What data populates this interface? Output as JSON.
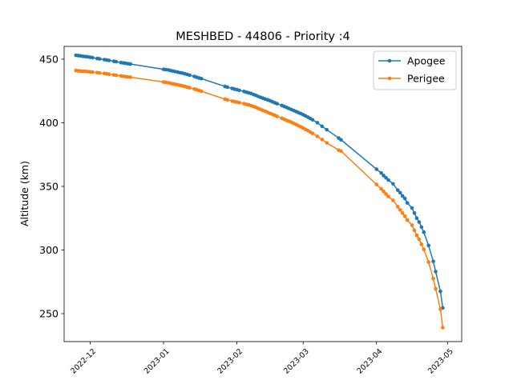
{
  "chart_data": {
    "type": "line",
    "title": "MESHBED - 44806 - Priority :4",
    "xlabel": "",
    "ylabel": "Altitude (km)",
    "xlim": [
      "2022-11-20",
      "2023-05-07"
    ],
    "ylim": [
      228,
      460
    ],
    "x_ticks": [
      "2022-12",
      "2023-01",
      "2023-02",
      "2023-03",
      "2023-04",
      "2023-05"
    ],
    "y_ticks": [
      250,
      300,
      350,
      400,
      450
    ],
    "legend_position": "top-right",
    "series": [
      {
        "name": "Apogee",
        "color": "#1f77b4",
        "points": [
          [
            "2022-11-25",
            453
          ],
          [
            "2022-11-26",
            452.8
          ],
          [
            "2022-11-27",
            452.5
          ],
          [
            "2022-11-28",
            452.2
          ],
          [
            "2022-11-29",
            452
          ],
          [
            "2022-11-30",
            451.8
          ],
          [
            "2022-12-01",
            451.5
          ],
          [
            "2022-12-02",
            451.2
          ],
          [
            "2022-12-04",
            450.5
          ],
          [
            "2022-12-05",
            450.2
          ],
          [
            "2022-12-07",
            449.6
          ],
          [
            "2022-12-08",
            449.3
          ],
          [
            "2022-12-09",
            449
          ],
          [
            "2022-12-11",
            448.3
          ],
          [
            "2022-12-12",
            448
          ],
          [
            "2022-12-14",
            447.3
          ],
          [
            "2022-12-15",
            447
          ],
          [
            "2022-12-16",
            446.7
          ],
          [
            "2022-12-17",
            446.4
          ],
          [
            "2022-12-18",
            446.2
          ],
          [
            "2023-01-01",
            442
          ],
          [
            "2023-01-02",
            441.7
          ],
          [
            "2023-01-03",
            441.5
          ],
          [
            "2023-01-04",
            441
          ],
          [
            "2023-01-05",
            440.6
          ],
          [
            "2023-01-06",
            440.2
          ],
          [
            "2023-01-07",
            439.8
          ],
          [
            "2023-01-08",
            439.3
          ],
          [
            "2023-01-09",
            439
          ],
          [
            "2023-01-10",
            438.5
          ],
          [
            "2023-01-11",
            438
          ],
          [
            "2023-01-12",
            437.4
          ],
          [
            "2023-01-14",
            436.4
          ],
          [
            "2023-01-15",
            435.8
          ],
          [
            "2023-01-16",
            435.2
          ],
          [
            "2023-01-17",
            434.7
          ],
          [
            "2023-01-27",
            428.5
          ],
          [
            "2023-01-28",
            428
          ],
          [
            "2023-01-30",
            427
          ],
          [
            "2023-01-31",
            426.4
          ],
          [
            "2023-02-01",
            426
          ],
          [
            "2023-02-02",
            425.5
          ],
          [
            "2023-02-04",
            424.6
          ],
          [
            "2023-02-05",
            424
          ],
          [
            "2023-02-06",
            423.5
          ],
          [
            "2023-02-07",
            423
          ],
          [
            "2023-02-08",
            422.2
          ],
          [
            "2023-02-09",
            421.5
          ],
          [
            "2023-02-10",
            420.7
          ],
          [
            "2023-02-11",
            420
          ],
          [
            "2023-02-12",
            419.3
          ],
          [
            "2023-02-13",
            418.6
          ],
          [
            "2023-02-14",
            418
          ],
          [
            "2023-02-15",
            417.3
          ],
          [
            "2023-02-16",
            416.5
          ],
          [
            "2023-02-17",
            415.7
          ],
          [
            "2023-02-18",
            415
          ],
          [
            "2023-02-20",
            413.6
          ],
          [
            "2023-02-21",
            412.8
          ],
          [
            "2023-02-22",
            412
          ],
          [
            "2023-02-23",
            411.2
          ],
          [
            "2023-02-24",
            410.4
          ],
          [
            "2023-02-25",
            409.6
          ],
          [
            "2023-02-26",
            408.8
          ],
          [
            "2023-02-27",
            408
          ],
          [
            "2023-02-28",
            407.2
          ],
          [
            "2023-03-01",
            406.3
          ],
          [
            "2023-03-02",
            405.4
          ],
          [
            "2023-03-03",
            404.4
          ],
          [
            "2023-03-04",
            403.4
          ],
          [
            "2023-03-05",
            402.3
          ],
          [
            "2023-03-07",
            400
          ],
          [
            "2023-03-09",
            397.2
          ],
          [
            "2023-03-11",
            394.5
          ],
          [
            "2023-03-16",
            388
          ],
          [
            "2023-03-17",
            386.6
          ],
          [
            "2023-04-01",
            363.5
          ],
          [
            "2023-04-03",
            360.5
          ],
          [
            "2023-04-04",
            358.5
          ],
          [
            "2023-04-05",
            356.8
          ],
          [
            "2023-04-06",
            355
          ],
          [
            "2023-04-08",
            352
          ],
          [
            "2023-04-10",
            347
          ],
          [
            "2023-04-11",
            345
          ],
          [
            "2023-04-12",
            342.5
          ],
          [
            "2023-04-13",
            340.5
          ],
          [
            "2023-04-14",
            337
          ],
          [
            "2023-04-16",
            333
          ],
          [
            "2023-04-17",
            329
          ],
          [
            "2023-04-18",
            325
          ],
          [
            "2023-04-19",
            322
          ],
          [
            "2023-04-20",
            318
          ],
          [
            "2023-04-21",
            314
          ],
          [
            "2023-04-23",
            303.5
          ],
          [
            "2023-04-25",
            291
          ],
          [
            "2023-04-26",
            283
          ],
          [
            "2023-04-28",
            267.5
          ],
          [
            "2023-04-29",
            254.5
          ]
        ]
      },
      {
        "name": "Perigee",
        "color": "#ff7f0e",
        "points": [
          [
            "2022-11-25",
            441
          ],
          [
            "2022-11-26",
            440.8
          ],
          [
            "2022-11-27",
            440.6
          ],
          [
            "2022-11-28",
            440.5
          ],
          [
            "2022-11-29",
            440.4
          ],
          [
            "2022-11-30",
            440.2
          ],
          [
            "2022-12-01",
            440
          ],
          [
            "2022-12-02",
            439.8
          ],
          [
            "2022-12-04",
            439.4
          ],
          [
            "2022-12-05",
            439.1
          ],
          [
            "2022-12-07",
            438.7
          ],
          [
            "2022-12-08",
            438.4
          ],
          [
            "2022-12-09",
            438.1
          ],
          [
            "2022-12-11",
            437.6
          ],
          [
            "2022-12-12",
            437.3
          ],
          [
            "2022-12-14",
            436.8
          ],
          [
            "2022-12-15",
            436.5
          ],
          [
            "2022-12-16",
            436.2
          ],
          [
            "2022-12-17",
            436
          ],
          [
            "2022-12-18",
            435.8
          ],
          [
            "2023-01-01",
            432
          ],
          [
            "2023-01-02",
            431.7
          ],
          [
            "2023-01-03",
            431.4
          ],
          [
            "2023-01-04",
            431
          ],
          [
            "2023-01-05",
            430.6
          ],
          [
            "2023-01-06",
            430.2
          ],
          [
            "2023-01-07",
            429.8
          ],
          [
            "2023-01-08",
            429.4
          ],
          [
            "2023-01-09",
            429
          ],
          [
            "2023-01-10",
            428.5
          ],
          [
            "2023-01-11",
            428
          ],
          [
            "2023-01-12",
            427.5
          ],
          [
            "2023-01-14",
            426.5
          ],
          [
            "2023-01-15",
            426
          ],
          [
            "2023-01-16",
            425.4
          ],
          [
            "2023-01-17",
            424.8
          ],
          [
            "2023-01-27",
            418.5
          ],
          [
            "2023-01-28",
            418
          ],
          [
            "2023-01-30",
            417
          ],
          [
            "2023-01-31",
            416.6
          ],
          [
            "2023-02-01",
            416.2
          ],
          [
            "2023-02-02",
            415.8
          ],
          [
            "2023-02-04",
            415
          ],
          [
            "2023-02-05",
            414.5
          ],
          [
            "2023-02-06",
            414
          ],
          [
            "2023-02-07",
            413.4
          ],
          [
            "2023-02-08",
            412.8
          ],
          [
            "2023-02-09",
            412.1
          ],
          [
            "2023-02-10",
            411.3
          ],
          [
            "2023-02-11",
            410.5
          ],
          [
            "2023-02-12",
            409.7
          ],
          [
            "2023-02-13",
            409
          ],
          [
            "2023-02-14",
            408.2
          ],
          [
            "2023-02-15",
            407.4
          ],
          [
            "2023-02-16",
            406.6
          ],
          [
            "2023-02-17",
            405.8
          ],
          [
            "2023-02-18",
            405
          ],
          [
            "2023-02-20",
            403.5
          ],
          [
            "2023-02-21",
            402.7
          ],
          [
            "2023-02-22",
            401.9
          ],
          [
            "2023-02-23",
            401.2
          ],
          [
            "2023-02-24",
            400.4
          ],
          [
            "2023-02-25",
            399.5
          ],
          [
            "2023-02-26",
            398.6
          ],
          [
            "2023-02-27",
            397.7
          ],
          [
            "2023-02-28",
            396.8
          ],
          [
            "2023-03-01",
            395.8
          ],
          [
            "2023-03-02",
            394.8
          ],
          [
            "2023-03-03",
            393.8
          ],
          [
            "2023-03-04",
            392.7
          ],
          [
            "2023-03-05",
            391.6
          ],
          [
            "2023-03-07",
            389.3
          ],
          [
            "2023-03-09",
            386.8
          ],
          [
            "2023-03-11",
            384.2
          ],
          [
            "2023-03-16",
            378.5
          ],
          [
            "2023-03-17",
            377.8
          ],
          [
            "2023-04-01",
            351.5
          ],
          [
            "2023-04-03",
            348
          ],
          [
            "2023-04-04",
            346
          ],
          [
            "2023-04-05",
            344
          ],
          [
            "2023-04-06",
            342
          ],
          [
            "2023-04-08",
            339
          ],
          [
            "2023-04-10",
            334
          ],
          [
            "2023-04-11",
            331.5
          ],
          [
            "2023-04-12",
            329
          ],
          [
            "2023-04-13",
            326.5
          ],
          [
            "2023-04-14",
            323.5
          ],
          [
            "2023-04-16",
            319.5
          ],
          [
            "2023-04-17",
            315.5
          ],
          [
            "2023-04-18",
            311.5
          ],
          [
            "2023-04-19",
            308.5
          ],
          [
            "2023-04-20",
            304.5
          ],
          [
            "2023-04-21",
            300.5
          ],
          [
            "2023-04-23",
            290.5
          ],
          [
            "2023-04-25",
            277.5
          ],
          [
            "2023-04-26",
            269.5
          ],
          [
            "2023-04-28",
            253.5
          ],
          [
            "2023-04-29",
            239
          ]
        ]
      }
    ]
  }
}
